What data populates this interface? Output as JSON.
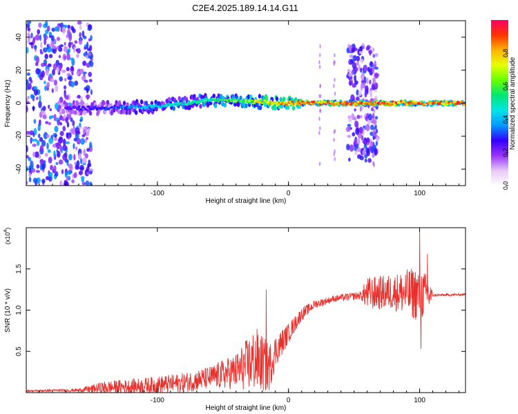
{
  "figure": {
    "title": "C2E4.2025.189.14.14.G11"
  },
  "chart_data": [
    {
      "type": "heatmap",
      "xlabel": "Height of straight line (km)",
      "ylabel": "Frequency (Hz)",
      "xlim": [
        -200,
        135
      ],
      "ylim": [
        -50,
        50
      ],
      "x_ticks": [
        -100,
        0,
        100
      ],
      "x_tick_labels": [
        "-100",
        "0",
        "100"
      ],
      "y_ticks": [
        -40,
        -20,
        0,
        20,
        40
      ],
      "y_tick_labels": [
        "-40",
        "-20",
        "0",
        "20",
        "40"
      ],
      "colorbar": {
        "label": "Normalized spectral amplitude",
        "range": [
          0,
          1
        ],
        "ticks": [
          0.0,
          0.2,
          0.4,
          0.6,
          0.8
        ],
        "tick_labels": [
          "0.0",
          "0.2",
          "0.4",
          "0.6",
          "0.8"
        ],
        "colors": [
          "#ffffff",
          "#e6c8f5",
          "#9933ff",
          "#3300ff",
          "#0099ff",
          "#00e6e6",
          "#00e673",
          "#66ff00",
          "#e6ff00",
          "#ffb300",
          "#ff3300",
          "#ff0066"
        ]
      },
      "main_ridge": [
        {
          "x": -170,
          "freq": -3,
          "amp": 0.25
        },
        {
          "x": -140,
          "freq": -3,
          "amp": 0.3
        },
        {
          "x": -100,
          "freq": -2,
          "amp": 0.45
        },
        {
          "x": -60,
          "freq": 2,
          "amp": 0.55
        },
        {
          "x": -30,
          "freq": 1,
          "amp": 0.7
        },
        {
          "x": 0,
          "freq": 0,
          "amp": 0.85
        },
        {
          "x": 50,
          "freq": 0,
          "amp": 0.9
        },
        {
          "x": 100,
          "freq": 0,
          "amp": 0.9
        },
        {
          "x": 135,
          "freq": 0,
          "amp": 0.9
        }
      ],
      "broadband_regions": [
        {
          "x_from": -200,
          "x_to": -150,
          "freq_from": -50,
          "freq_to": 50,
          "amp": 0.35
        },
        {
          "x_from": 45,
          "x_to": 68,
          "freq_from": -35,
          "freq_to": 35,
          "amp": 0.3
        }
      ]
    },
    {
      "type": "line",
      "xlabel": "Height of straight line (km)",
      "ylabel": "SNR (10 * v/v)",
      "y_multiplier": "(x10",
      "y_multiplier_exp": "4",
      "y_multiplier_close": ")",
      "xlim": [
        -200,
        135
      ],
      "ylim": [
        0,
        2.0
      ],
      "x_ticks": [
        -100,
        0,
        100
      ],
      "x_tick_labels": [
        "-100",
        "0",
        "100"
      ],
      "y_ticks": [
        0.5,
        1.0,
        1.5
      ],
      "y_tick_labels": [
        "0.5",
        "1.0",
        "1.5"
      ],
      "color": "#e8302c",
      "trend": [
        {
          "x": -200,
          "y": 0.02,
          "noise": 0.01
        },
        {
          "x": -160,
          "y": 0.03,
          "noise": 0.02
        },
        {
          "x": -140,
          "y": 0.06,
          "noise": 0.08
        },
        {
          "x": -110,
          "y": 0.08,
          "noise": 0.1
        },
        {
          "x": -80,
          "y": 0.12,
          "noise": 0.12
        },
        {
          "x": -60,
          "y": 0.18,
          "noise": 0.14
        },
        {
          "x": -40,
          "y": 0.26,
          "noise": 0.22
        },
        {
          "x": -25,
          "y": 0.4,
          "noise": 0.4
        },
        {
          "x": -15,
          "y": 0.3,
          "noise": 0.3
        },
        {
          "x": -10,
          "y": 0.5,
          "noise": 0.2
        },
        {
          "x": 0,
          "y": 0.72,
          "noise": 0.12
        },
        {
          "x": 10,
          "y": 0.95,
          "noise": 0.08
        },
        {
          "x": 20,
          "y": 1.07,
          "noise": 0.05
        },
        {
          "x": 35,
          "y": 1.14,
          "noise": 0.04
        },
        {
          "x": 55,
          "y": 1.18,
          "noise": 0.05
        },
        {
          "x": 60,
          "y": 1.2,
          "noise": 0.2
        },
        {
          "x": 80,
          "y": 1.22,
          "noise": 0.22
        },
        {
          "x": 100,
          "y": 1.2,
          "noise": 0.35
        },
        {
          "x": 108,
          "y": 1.18,
          "noise": 0.2
        },
        {
          "x": 110,
          "y": 1.18,
          "noise": 0.015
        },
        {
          "x": 135,
          "y": 1.19,
          "noise": 0.015
        }
      ],
      "peaks": [
        {
          "x": -17,
          "y": 1.25
        },
        {
          "x": 100,
          "y": 1.97
        },
        {
          "x": 101,
          "y": 0.53
        },
        {
          "x": 106,
          "y": 1.68
        }
      ]
    }
  ]
}
